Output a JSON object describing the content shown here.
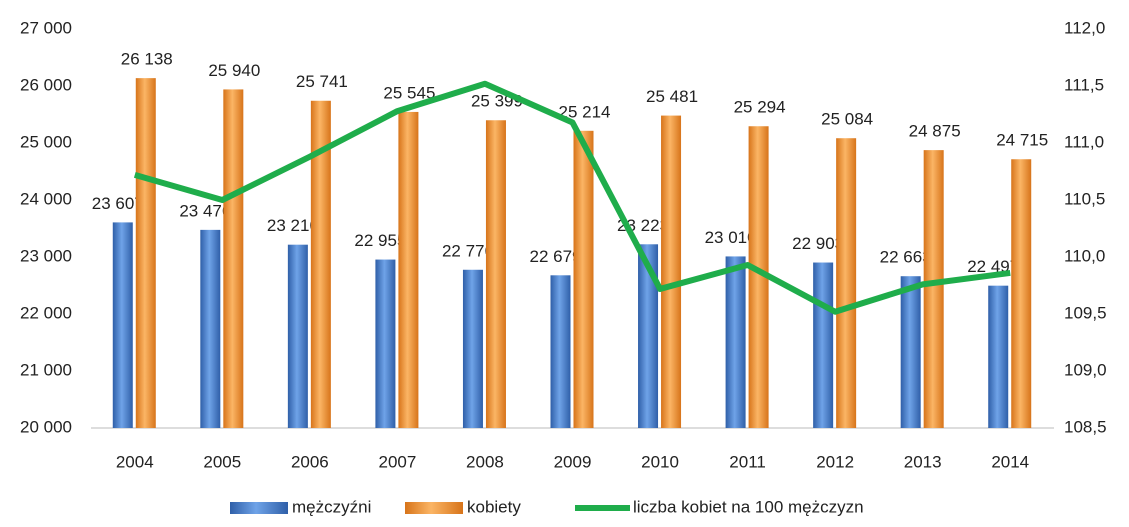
{
  "chart_data": {
    "type": "bar",
    "categories": [
      "2004",
      "2005",
      "2006",
      "2007",
      "2008",
      "2009",
      "2010",
      "2011",
      "2012",
      "2013",
      "2014"
    ],
    "series": [
      {
        "name": "mężczyźni",
        "color": "#4a7fcf",
        "values": [
          23607,
          23476,
          23216,
          22955,
          22776,
          22679,
          23223,
          23010,
          22903,
          22663,
          22497
        ],
        "value_labels": [
          "23 607",
          "23 476",
          "23 216",
          "22 955",
          "22 776",
          "22 679",
          "23 223",
          "23 010",
          "22 903",
          "22 663",
          "22 497"
        ]
      },
      {
        "name": "kobiety",
        "color": "#f0932e",
        "values": [
          26138,
          25940,
          25741,
          25545,
          25399,
          25214,
          25481,
          25294,
          25084,
          24875,
          24715
        ],
        "value_labels": [
          "26 138",
          "25 940",
          "25 741",
          "25 545",
          "25 399",
          "25 214",
          "25 481",
          "25 294",
          "25 084",
          "24 875",
          "24 715"
        ]
      },
      {
        "name": "liczba kobiet na 100 mężczyzn",
        "color": "#1fad4b",
        "type": "line",
        "axis": "y2",
        "values": [
          110.72,
          110.5,
          110.88,
          111.28,
          111.52,
          111.18,
          109.72,
          109.93,
          109.52,
          109.76,
          109.86
        ]
      }
    ],
    "ylim": [
      20000,
      27000
    ],
    "yticks": [
      {
        "value": 20000,
        "label": "20 000"
      },
      {
        "value": 21000,
        "label": "21 000"
      },
      {
        "value": 22000,
        "label": "22 000"
      },
      {
        "value": 23000,
        "label": "23 000"
      },
      {
        "value": 24000,
        "label": "24 000"
      },
      {
        "value": 25000,
        "label": "25 000"
      },
      {
        "value": 26000,
        "label": "26 000"
      },
      {
        "value": 27000,
        "label": "27 000"
      }
    ],
    "y2lim": [
      108.5,
      112.0
    ],
    "y2ticks": [
      {
        "value": 108.5,
        "label": "108,5"
      },
      {
        "value": 109.0,
        "label": "109,0"
      },
      {
        "value": 109.5,
        "label": "109,5"
      },
      {
        "value": 110.0,
        "label": "110,0"
      },
      {
        "value": 110.5,
        "label": "110,5"
      },
      {
        "value": 111.0,
        "label": "111,0"
      },
      {
        "value": 111.5,
        "label": "111,5"
      },
      {
        "value": 112.0,
        "label": "112,0"
      }
    ],
    "legend": "bottom"
  }
}
